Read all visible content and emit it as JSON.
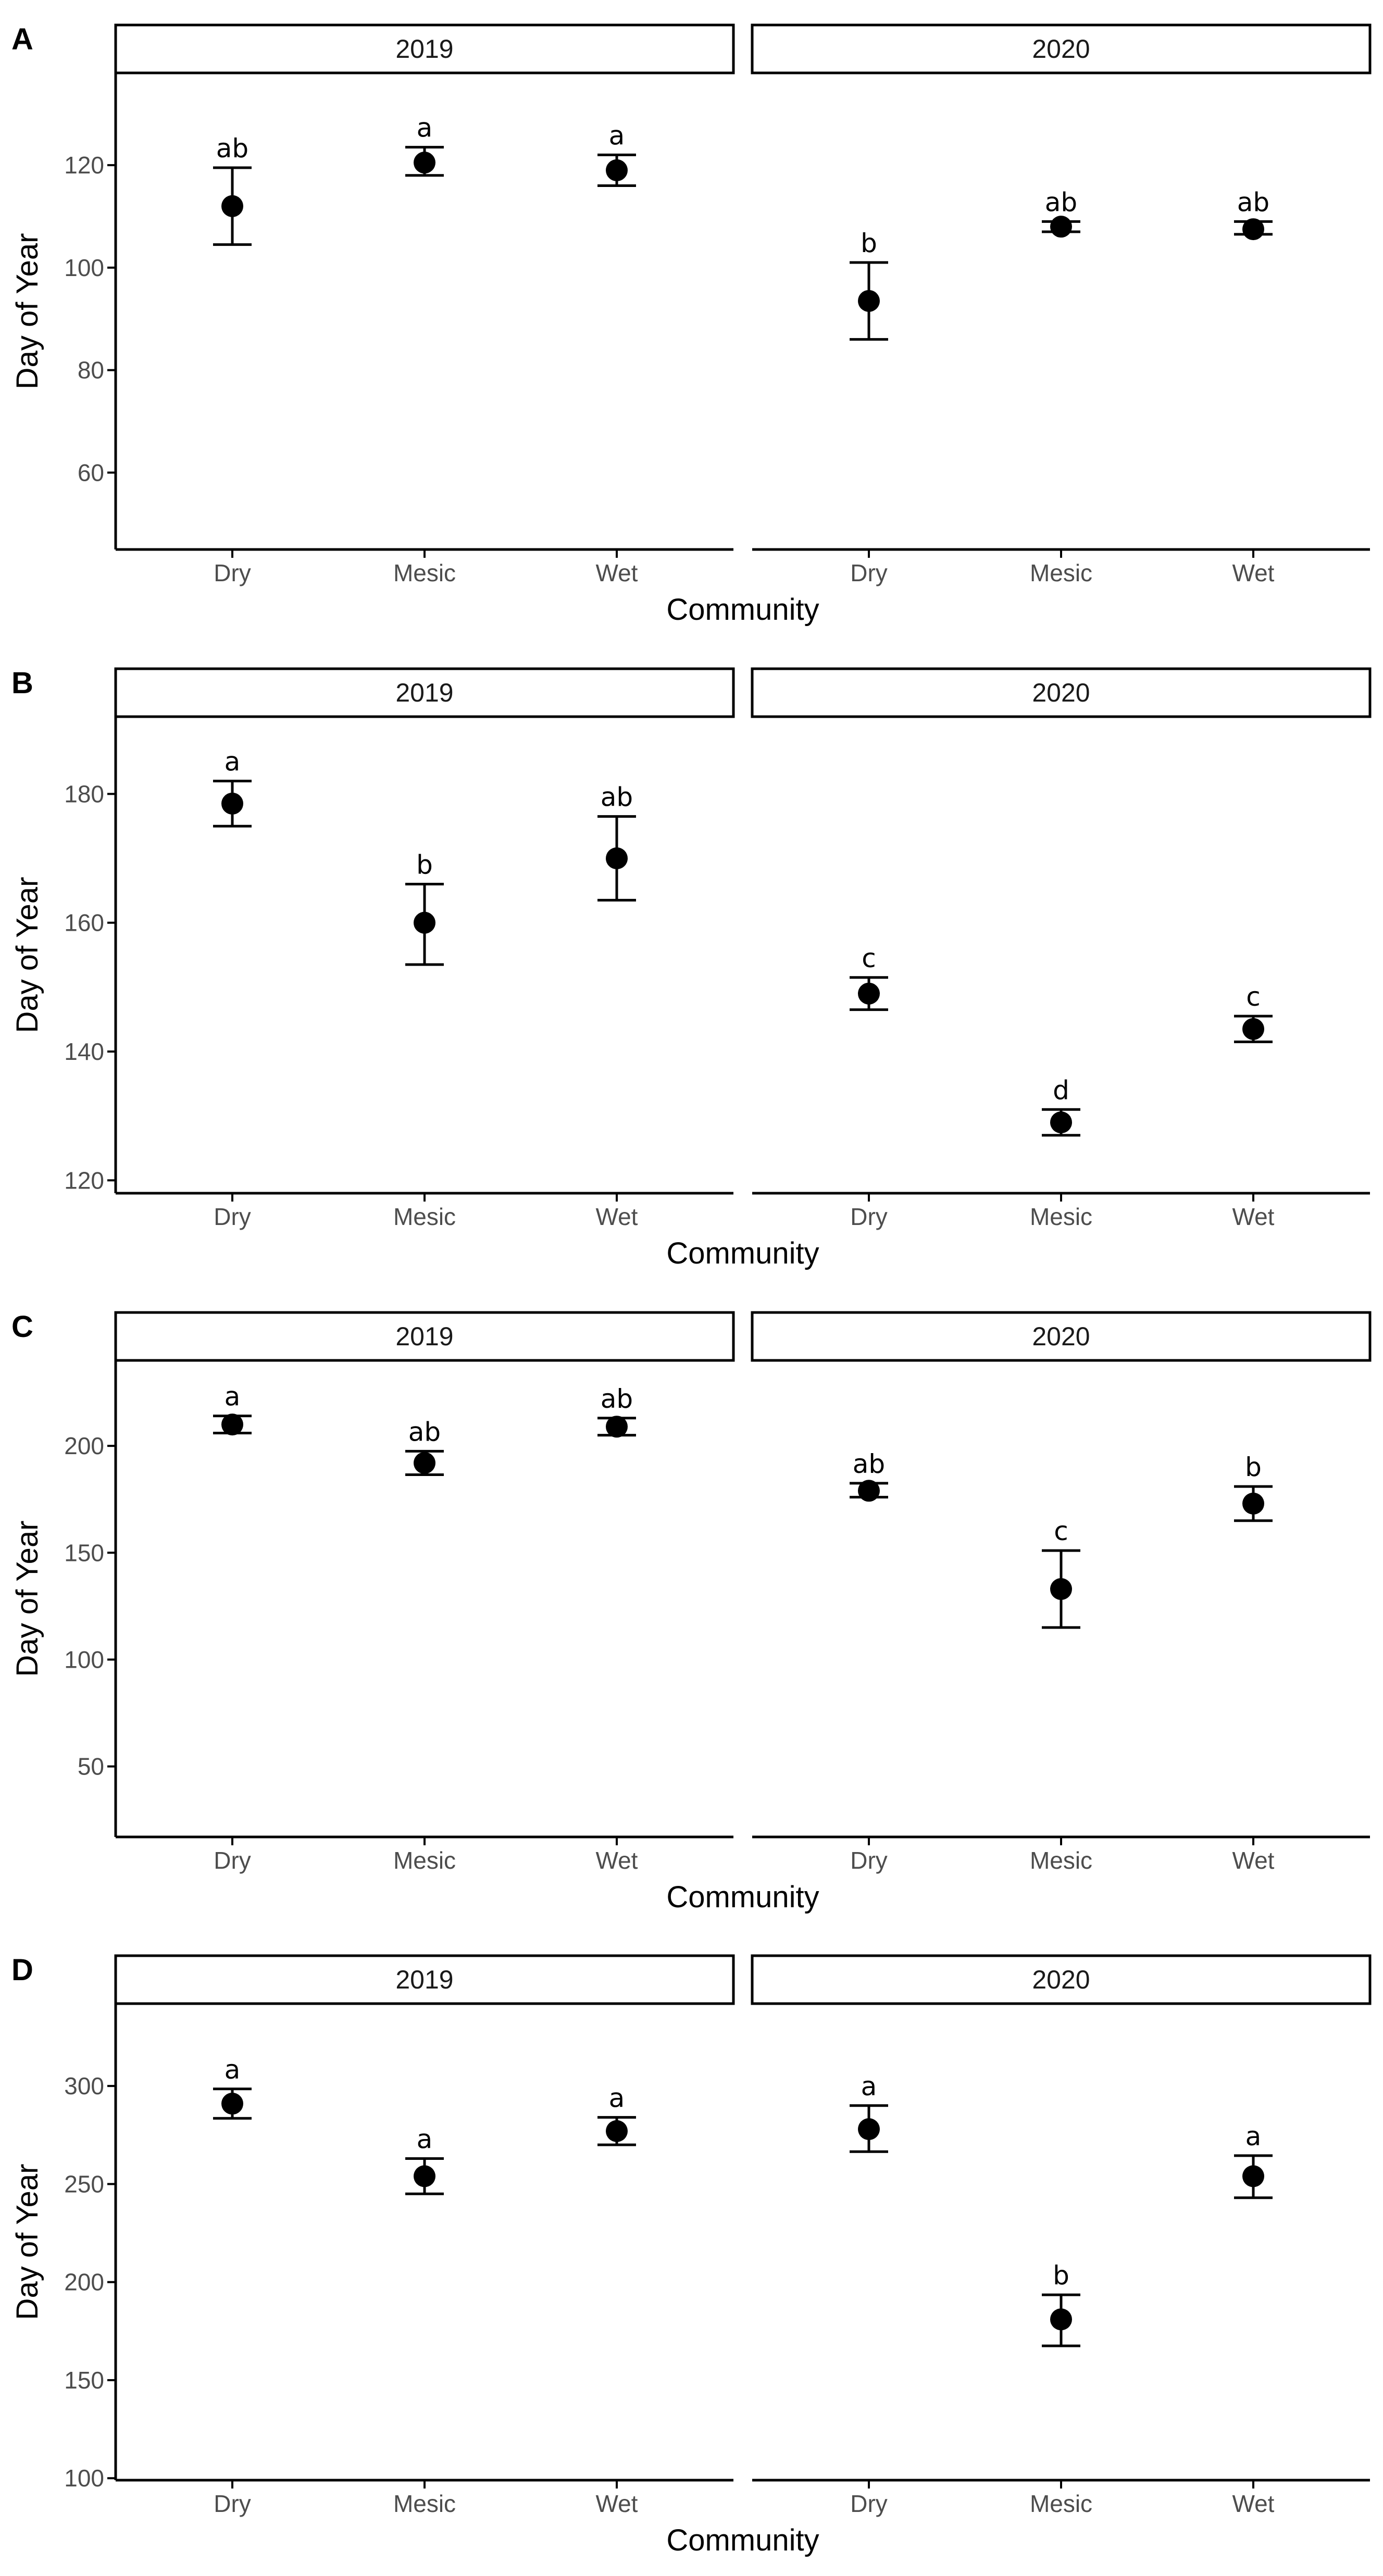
{
  "chart_data": [
    {
      "panel": "A",
      "type": "scatter",
      "xlabel": "Community",
      "ylabel": "Day of Year",
      "ylim": [
        45,
        138
      ],
      "yticks": [
        60,
        80,
        100,
        120
      ],
      "categories": [
        "Dry",
        "Mesic",
        "Wet"
      ],
      "facets": [
        {
          "label": "2019",
          "points": [
            {
              "category": "Dry",
              "value": 112,
              "lower": 104.5,
              "upper": 119.5,
              "letter": "ab"
            },
            {
              "category": "Mesic",
              "value": 120.5,
              "lower": 118,
              "upper": 123.5,
              "letter": "a"
            },
            {
              "category": "Wet",
              "value": 119,
              "lower": 116,
              "upper": 122,
              "letter": "a"
            }
          ]
        },
        {
          "label": "2020",
          "points": [
            {
              "category": "Dry",
              "value": 93.5,
              "lower": 86,
              "upper": 101,
              "letter": "b"
            },
            {
              "category": "Mesic",
              "value": 108,
              "lower": 107,
              "upper": 109,
              "letter": "ab"
            },
            {
              "category": "Wet",
              "value": 107.5,
              "lower": 106.5,
              "upper": 109,
              "letter": "ab"
            }
          ]
        }
      ]
    },
    {
      "panel": "B",
      "type": "scatter",
      "xlabel": "Community",
      "ylabel": "Day of Year",
      "ylim": [
        118,
        192
      ],
      "yticks": [
        120,
        140,
        160,
        180
      ],
      "categories": [
        "Dry",
        "Mesic",
        "Wet"
      ],
      "facets": [
        {
          "label": "2019",
          "points": [
            {
              "category": "Dry",
              "value": 178.5,
              "lower": 175,
              "upper": 182,
              "letter": "a"
            },
            {
              "category": "Mesic",
              "value": 160,
              "lower": 153.5,
              "upper": 166,
              "letter": "b"
            },
            {
              "category": "Wet",
              "value": 170,
              "lower": 163.5,
              "upper": 176.5,
              "letter": "ab"
            }
          ]
        },
        {
          "label": "2020",
          "points": [
            {
              "category": "Dry",
              "value": 149,
              "lower": 146.5,
              "upper": 151.5,
              "letter": "c"
            },
            {
              "category": "Mesic",
              "value": 129,
              "lower": 127,
              "upper": 131,
              "letter": "d"
            },
            {
              "category": "Wet",
              "value": 143.5,
              "lower": 141.5,
              "upper": 145.5,
              "letter": "c"
            }
          ]
        }
      ]
    },
    {
      "panel": "C",
      "type": "scatter",
      "xlabel": "Community",
      "ylabel": "Day of Year",
      "ylim": [
        17,
        240
      ],
      "yticks": [
        50,
        100,
        150,
        200
      ],
      "categories": [
        "Dry",
        "Mesic",
        "Wet"
      ],
      "facets": [
        {
          "label": "2019",
          "points": [
            {
              "category": "Dry",
              "value": 210,
              "lower": 206,
              "upper": 214,
              "letter": "a"
            },
            {
              "category": "Mesic",
              "value": 192,
              "lower": 186.5,
              "upper": 197.5,
              "letter": "ab"
            },
            {
              "category": "Wet",
              "value": 209,
              "lower": 205,
              "upper": 213,
              "letter": "ab"
            }
          ]
        },
        {
          "label": "2020",
          "points": [
            {
              "category": "Dry",
              "value": 179,
              "lower": 176,
              "upper": 182.5,
              "letter": "ab"
            },
            {
              "category": "Mesic",
              "value": 133,
              "lower": 115,
              "upper": 151,
              "letter": "c"
            },
            {
              "category": "Wet",
              "value": 173,
              "lower": 165,
              "upper": 181,
              "letter": "b"
            }
          ]
        }
      ]
    },
    {
      "panel": "D",
      "type": "scatter",
      "xlabel": "Community",
      "ylabel": "Day of Year",
      "ylim": [
        99,
        342
      ],
      "yticks": [
        100,
        150,
        200,
        250,
        300
      ],
      "categories": [
        "Dry",
        "Mesic",
        "Wet"
      ],
      "facets": [
        {
          "label": "2019",
          "points": [
            {
              "category": "Dry",
              "value": 291,
              "lower": 283.5,
              "upper": 298.5,
              "letter": "a"
            },
            {
              "category": "Mesic",
              "value": 254,
              "lower": 245,
              "upper": 263,
              "letter": "a"
            },
            {
              "category": "Wet",
              "value": 277,
              "lower": 270,
              "upper": 284,
              "letter": "a"
            }
          ]
        },
        {
          "label": "2020",
          "points": [
            {
              "category": "Dry",
              "value": 278,
              "lower": 266.5,
              "upper": 290,
              "letter": "a"
            },
            {
              "category": "Mesic",
              "value": 181,
              "lower": 167.5,
              "upper": 193.5,
              "letter": "b"
            },
            {
              "category": "Wet",
              "value": 254,
              "lower": 243,
              "upper": 264.5,
              "letter": "a"
            }
          ]
        }
      ]
    }
  ]
}
